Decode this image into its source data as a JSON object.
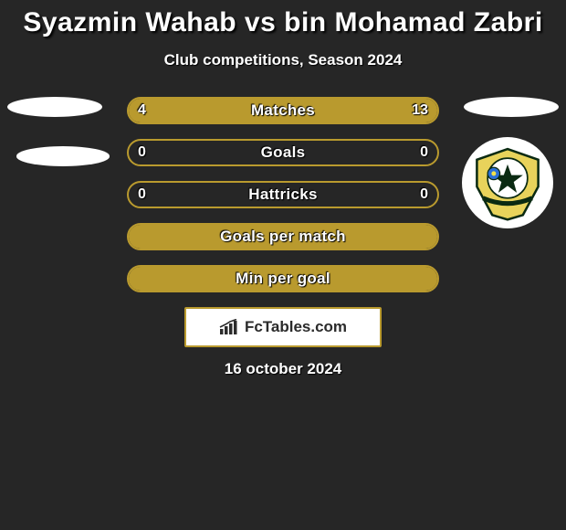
{
  "title": "Syazmin Wahab vs bin Mohamad Zabri",
  "subtitle": "Club competitions, Season 2024",
  "date": "16 october 2024",
  "brand_text": "FcTables.com",
  "colors": {
    "background": "#262626",
    "bar_border": "#b99a2e",
    "bar_fill": "#b99a2e",
    "text": "#ffffff",
    "logo_bg": "#ffffff",
    "logo_text": "#2b2b2b"
  },
  "bars": [
    {
      "label": "Matches",
      "left_val": "4",
      "right_val": "13",
      "left_pct": 24,
      "right_pct": 76,
      "show_vals": true
    },
    {
      "label": "Goals",
      "left_val": "0",
      "right_val": "0",
      "left_pct": 0,
      "right_pct": 0,
      "show_vals": true
    },
    {
      "label": "Hattricks",
      "left_val": "0",
      "right_val": "0",
      "left_pct": 0,
      "right_pct": 0,
      "show_vals": true
    },
    {
      "label": "Goals per match",
      "left_val": "",
      "right_val": "",
      "left_pct": 100,
      "right_pct": 0,
      "show_vals": false
    },
    {
      "label": "Min per goal",
      "left_val": "",
      "right_val": "",
      "left_pct": 100,
      "right_pct": 0,
      "show_vals": false
    }
  ]
}
